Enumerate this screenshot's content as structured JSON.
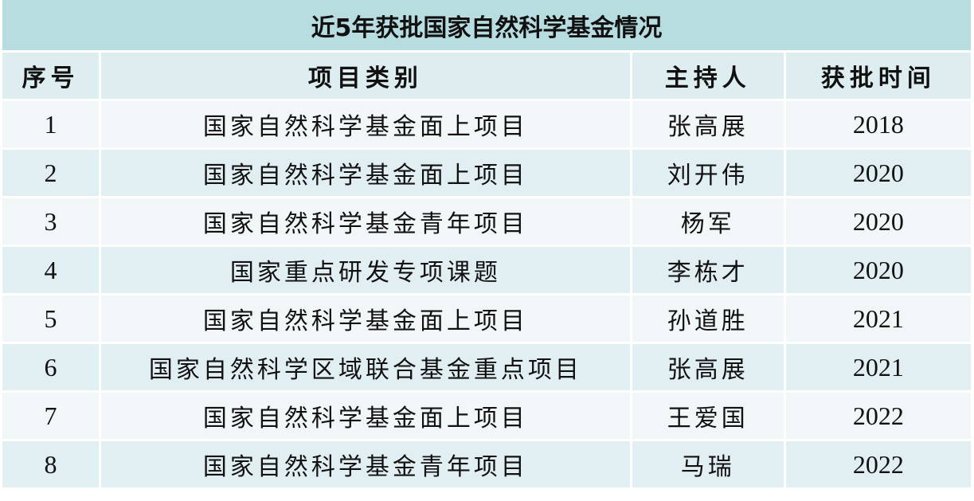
{
  "title": "近5年获批国家自然科学基金情况",
  "columns": [
    "序号",
    "项目类别",
    "主持人",
    "获批时间"
  ],
  "rows": [
    [
      "1",
      "国家自然科学基金面上项目",
      "张高展",
      "2018"
    ],
    [
      "2",
      "国家自然科学基金面上项目",
      "刘开伟",
      "2020"
    ],
    [
      "3",
      "国家自然科学基金青年项目",
      "杨军",
      "2020"
    ],
    [
      "4",
      "国家重点研发专项课题",
      "李栋才",
      "2020"
    ],
    [
      "5",
      "国家自然科学基金面上项目",
      "孙道胜",
      "2021"
    ],
    [
      "6",
      "国家自然科学区域联合基金重点项目",
      "张高展",
      "2021"
    ],
    [
      "7",
      "国家自然科学基金面上项目",
      "王爱国",
      "2022"
    ],
    [
      "8",
      "国家自然科学基金青年项目",
      "马瑞",
      "2022"
    ]
  ],
  "colors": {
    "title_bg": "#b8dde1",
    "header_bg": "#deeef0",
    "row_light": "#f1f7f9",
    "row_dark": "#e2eff2"
  }
}
